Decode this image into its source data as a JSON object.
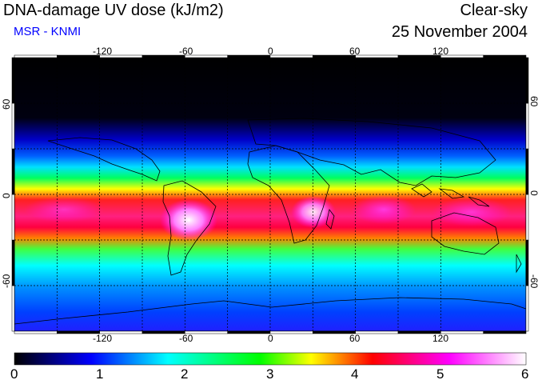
{
  "header": {
    "title": "DNA-damage UV dose (kJ/m2)",
    "source": "MSR - KNMI",
    "mode": "Clear-sky",
    "date": "25 November 2004"
  },
  "map": {
    "lon_ticks_top": [
      "-120",
      "-60",
      "0",
      "60",
      "120"
    ],
    "lon_ticks_bottom": [
      "-120",
      "-60",
      "0",
      "60",
      "120"
    ],
    "lat_ticks_left": [
      "60",
      "0",
      "-60"
    ],
    "lat_ticks_right": [
      "60",
      "0",
      "-60"
    ],
    "gridline_lons": [
      -150,
      -120,
      -90,
      -60,
      -30,
      0,
      30,
      60,
      90,
      120
    ],
    "gridline_lats": [
      60,
      30,
      0,
      -30,
      -60
    ],
    "lon_range": [
      -180,
      180
    ],
    "lat_range": [
      -90,
      90
    ]
  },
  "colorbar": {
    "labels": [
      "0",
      "1",
      "2",
      "3",
      "4",
      "5",
      "6"
    ],
    "range": [
      0,
      6
    ],
    "colors": [
      "#000000",
      "#0000ff",
      "#00ffff",
      "#00ff00",
      "#ffff00",
      "#ff0000",
      "#ff00ff",
      "#ffffff"
    ]
  },
  "colors": {
    "title_text": "#000000",
    "source_text": "#0000ff",
    "gridline": "#000000",
    "coastline": "#000000"
  }
}
